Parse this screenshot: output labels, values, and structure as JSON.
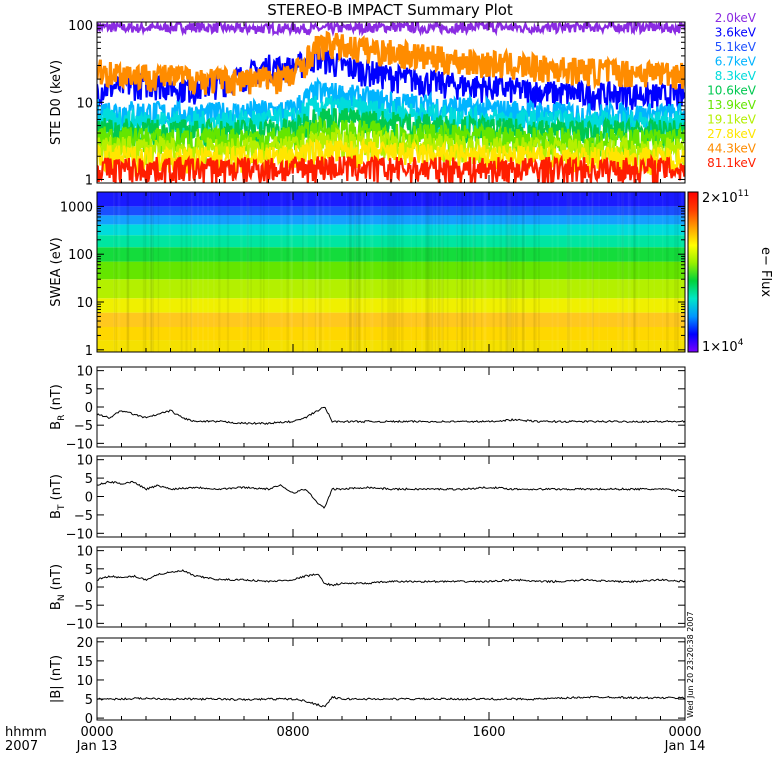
{
  "chart_data": {
    "type": "line",
    "title": "STEREO-B IMPACT Summary Plot",
    "time_axis": {
      "ticks": [
        {
          "hour": 0,
          "label": "0000",
          "sublabel": "Jan 13"
        },
        {
          "hour": 8,
          "label": "0800",
          "sublabel": ""
        },
        {
          "hour": 16,
          "label": "1600",
          "sublabel": ""
        },
        {
          "hour": 24,
          "label": "0000",
          "sublabel": "Jan 14"
        }
      ],
      "corner_labels": [
        "hhmm",
        "2007"
      ],
      "xlim": [
        0,
        24
      ]
    },
    "panels": [
      {
        "id": "ste",
        "ylabel": "STE D0 (keV)",
        "yscale": "log",
        "ylim": [
          0.9,
          110
        ],
        "ytick_labels": [
          {
            "v": 1,
            "label": "1"
          },
          {
            "v": 10,
            "label": "10"
          },
          {
            "v": 100,
            "label": "100"
          }
        ],
        "legend": [
          {
            "label": "2.0keV",
            "color": "#8a2be2"
          },
          {
            "label": "3.6keV",
            "color": "#0000ff"
          },
          {
            "label": "5.1keV",
            "color": "#1e50ff"
          },
          {
            "label": "6.7keV",
            "color": "#00b4ff"
          },
          {
            "label": "8.3keV",
            "color": "#00dcdc"
          },
          {
            "label": "10.6keV",
            "color": "#00c850"
          },
          {
            "label": "13.9keV",
            "color": "#64e600"
          },
          {
            "label": "19.1keV",
            "color": "#b4f000"
          },
          {
            "label": "27.8keV",
            "color": "#ffe600"
          },
          {
            "label": "44.3keV",
            "color": "#ff8c00"
          },
          {
            "label": "81.1keV",
            "color": "#ff1e00"
          }
        ],
        "series": [
          {
            "color": "#8a2be2",
            "x": [
              0,
              2,
              4,
              6,
              8,
              9,
              10,
              12,
              14,
              16,
              18,
              20,
              22,
              24
            ],
            "y": [
              95,
              92,
              95,
              90,
              92,
              90,
              92,
              95,
              92,
              95,
              92,
              95,
              95,
              92
            ]
          },
          {
            "color": "#0000ff",
            "x": [
              0,
              2,
              4,
              6,
              7,
              8,
              9,
              10,
              12,
              14,
              16,
              18,
              20,
              22,
              24
            ],
            "y": [
              15,
              18,
              15,
              22,
              30,
              28,
              40,
              30,
              22,
              18,
              16,
              14,
              13,
              13,
              12
            ]
          },
          {
            "color": "#00b4ff",
            "x": [
              0,
              4,
              8,
              9,
              12,
              16,
              20,
              24
            ],
            "y": [
              8,
              7,
              8,
              14,
              10,
              8,
              7,
              7
            ]
          },
          {
            "color": "#00dcdc",
            "x": [
              0,
              4,
              8,
              9,
              12,
              16,
              20,
              24
            ],
            "y": [
              6,
              5.5,
              6,
              9,
              7.5,
              6,
              5.5,
              5.5
            ]
          },
          {
            "color": "#00c850",
            "x": [
              0,
              4,
              8,
              9,
              12,
              16,
              20,
              24
            ],
            "y": [
              4.5,
              4.2,
              4.5,
              6.5,
              5.5,
              4.5,
              4.2,
              4.2
            ]
          },
          {
            "color": "#64e600",
            "x": [
              0,
              4,
              8,
              9,
              12,
              16,
              20,
              24
            ],
            "y": [
              3.5,
              3.3,
              3.5,
              4.5,
              4,
              3.5,
              3.3,
              3.3
            ]
          },
          {
            "color": "#b4f000",
            "x": [
              0,
              4,
              8,
              9,
              12,
              16,
              20,
              24
            ],
            "y": [
              2.6,
              2.5,
              2.6,
              3.2,
              3,
              2.6,
              2.5,
              2.5
            ]
          },
          {
            "color": "#ffe600",
            "x": [
              0,
              4,
              8,
              9,
              12,
              16,
              20,
              24
            ],
            "y": [
              2,
              1.9,
              2,
              2.4,
              2.2,
              2,
              1.9,
              1.9
            ]
          },
          {
            "color": "#ff1e00",
            "x": [
              0,
              4,
              8,
              9,
              12,
              16,
              20,
              24
            ],
            "y": [
              1.4,
              1.4,
              1.4,
              1.5,
              1.4,
              1.4,
              1.4,
              1.4
            ]
          },
          {
            "color": "#ff8c00",
            "x": [
              0,
              1,
              2,
              3,
              4,
              5,
              6,
              7,
              8,
              8.5,
              9,
              9.5,
              10,
              11,
              12,
              13,
              14,
              15,
              16,
              17,
              18,
              19,
              20,
              21,
              22,
              23,
              24
            ],
            "y": [
              26,
              24,
              23,
              22,
              21,
              20,
              20,
              21,
              22,
              35,
              55,
              58,
              55,
              50,
              46,
              42,
              38,
              35,
              33,
              31,
              29,
              28,
              27,
              26,
              25,
              25,
              24
            ]
          }
        ]
      },
      {
        "id": "swea",
        "ylabel": "SWEA (eV)",
        "yscale": "log",
        "ylim": [
          0.9,
          2000
        ],
        "ytick_labels": [
          {
            "v": 1,
            "label": "1"
          },
          {
            "v": 10,
            "label": "10"
          },
          {
            "v": 100,
            "label": "100"
          },
          {
            "v": 1000,
            "label": "1000"
          }
        ],
        "colorbar": {
          "label": "e− Flux",
          "max_label": "2×10",
          "max_exp": "11",
          "min_label": "1×10",
          "min_exp": "4"
        },
        "spectrogram_bands": [
          {
            "energy_top": 2000,
            "color": "#1a1aff"
          },
          {
            "energy_top": 1000,
            "color": "#1a50ff"
          },
          {
            "energy_top": 650,
            "color": "#14a0ff"
          },
          {
            "energy_top": 420,
            "color": "#00dcdc"
          },
          {
            "energy_top": 250,
            "color": "#00e6a0"
          },
          {
            "energy_top": 140,
            "color": "#14dc3c"
          },
          {
            "energy_top": 70,
            "color": "#64e600"
          },
          {
            "energy_top": 30,
            "color": "#b4f000"
          },
          {
            "energy_top": 12,
            "color": "#f0f000"
          },
          {
            "energy_top": 6,
            "color": "#ffc81e"
          },
          {
            "energy_top": 3,
            "color": "#ffd700"
          },
          {
            "energy_top": 1.6,
            "color": "#f5e100"
          }
        ]
      },
      {
        "id": "br",
        "ylabel": "B",
        "ylabel_sub": "R",
        "ylabel_unit": " (nT)",
        "yscale": "linear",
        "ylim": [
          -11,
          11
        ],
        "ytick_labels": [
          {
            "v": 10,
            "label": "10"
          },
          {
            "v": 5,
            "label": "5"
          },
          {
            "v": 0,
            "label": "0"
          },
          {
            "v": -5,
            "label": "−5"
          },
          {
            "v": -10,
            "label": "−10"
          }
        ],
        "series": [
          {
            "color": "#000000",
            "x": [
              0,
              0.5,
              1,
              1.5,
              2,
              2.5,
              3,
              3.5,
              4,
              5,
              6,
              7,
              8,
              8.5,
              9,
              9.3,
              9.6,
              10,
              11,
              12,
              13,
              14,
              15,
              16,
              17,
              18,
              19,
              20,
              21,
              22,
              23,
              24
            ],
            "y": [
              -2,
              -3,
              -1,
              -2,
              -3,
              -2,
              -1,
              -3,
              -4,
              -4,
              -4.5,
              -4.5,
              -4,
              -3,
              -1,
              0,
              -4,
              -4,
              -4,
              -4,
              -4,
              -4,
              -4,
              -4,
              -3.5,
              -4,
              -4,
              -4,
              -4,
              -4,
              -4,
              -4
            ]
          }
        ]
      },
      {
        "id": "bt",
        "ylabel": "B",
        "ylabel_sub": "T",
        "ylabel_unit": " (nT)",
        "yscale": "linear",
        "ylim": [
          -11,
          11
        ],
        "ytick_labels": [
          {
            "v": 10,
            "label": "10"
          },
          {
            "v": 5,
            "label": "5"
          },
          {
            "v": 0,
            "label": "0"
          },
          {
            "v": -5,
            "label": "−5"
          },
          {
            "v": -10,
            "label": "−10"
          }
        ],
        "series": [
          {
            "color": "#000000",
            "x": [
              0,
              0.5,
              1,
              1.5,
              2,
              2.5,
              3,
              4,
              5,
              6,
              7,
              7.5,
              8,
              8.5,
              8.8,
              9,
              9.3,
              9.6,
              10,
              11,
              12,
              13,
              14,
              15,
              16,
              17,
              18,
              19,
              20,
              21,
              22,
              23,
              24
            ],
            "y": [
              3,
              4,
              3.5,
              4,
              2,
              3,
              2,
              2.5,
              2,
              2.5,
              2,
              3,
              1,
              2,
              0,
              -2,
              -3,
              2,
              2,
              2.5,
              2,
              2,
              2,
              2,
              2.5,
              2,
              2,
              2,
              2,
              2,
              2,
              2,
              1.5
            ]
          }
        ]
      },
      {
        "id": "bn",
        "ylabel": "B",
        "ylabel_sub": "N",
        "ylabel_unit": " (nT)",
        "yscale": "linear",
        "ylim": [
          -11,
          11
        ],
        "ytick_labels": [
          {
            "v": 10,
            "label": "10"
          },
          {
            "v": 5,
            "label": "5"
          },
          {
            "v": 0,
            "label": "0"
          },
          {
            "v": -5,
            "label": "−5"
          },
          {
            "v": -10,
            "label": "−10"
          }
        ],
        "series": [
          {
            "color": "#000000",
            "x": [
              0,
              0.5,
              1,
              1.5,
              2,
              2.5,
              3,
              3.5,
              4,
              5,
              6,
              7,
              8,
              8.5,
              9,
              9.3,
              9.6,
              10,
              11,
              12,
              13,
              14,
              15,
              16,
              17,
              18,
              19,
              20,
              21,
              22,
              23,
              24
            ],
            "y": [
              2,
              3,
              2.5,
              3,
              2,
              3.5,
              4,
              4.5,
              3,
              2,
              2,
              1.5,
              2,
              3,
              3.5,
              1,
              0.5,
              1,
              1,
              1.5,
              1.5,
              1.5,
              1.5,
              1.5,
              2,
              1.5,
              1.5,
              2,
              1.5,
              1.5,
              2,
              1.5
            ]
          }
        ]
      },
      {
        "id": "bmag",
        "ylabel": "|B| (nT)",
        "yscale": "linear",
        "ylim": [
          -0.5,
          21
        ],
        "ytick_labels": [
          {
            "v": 20,
            "label": "20"
          },
          {
            "v": 15,
            "label": "15"
          },
          {
            "v": 10,
            "label": "10"
          },
          {
            "v": 5,
            "label": "5"
          },
          {
            "v": 0,
            "label": "0"
          }
        ],
        "series": [
          {
            "color": "#000000",
            "x": [
              0,
              1,
              2,
              3,
              4,
              5,
              6,
              7,
              8,
              8.5,
              9,
              9.3,
              9.6,
              10,
              11,
              12,
              13,
              14,
              15,
              16,
              17,
              18,
              19,
              20,
              21,
              22,
              23,
              24
            ],
            "y": [
              5,
              5,
              5.2,
              5,
              5,
              5,
              4.8,
              5,
              5,
              4.5,
              3.5,
              3,
              5.5,
              5,
              5,
              5,
              5,
              5,
              5,
              5,
              5,
              5,
              5.2,
              5.5,
              5.5,
              5.3,
              5.3,
              5.3
            ]
          }
        ]
      }
    ],
    "timestamp_note": "Wed Jun 20 23:20:38 2007"
  }
}
